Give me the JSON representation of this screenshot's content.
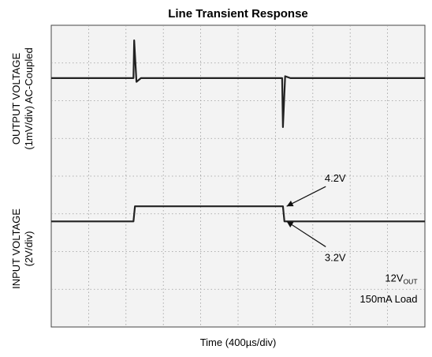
{
  "chart_data": {
    "type": "line",
    "title": "Line Transient Response",
    "xlabel": "Time (400µs/div)",
    "ylabel_top": "OUTPUT VOLTAGE\n(1mV/div) AC-Coupled",
    "ylabel_bottom": "INPUT VOLTAGE\n(2V/div)",
    "grid": true,
    "x_divisions": 10,
    "y_divisions": 8,
    "xlim": [
      0,
      10
    ],
    "ylim": [
      0,
      8
    ],
    "series": [
      {
        "name": "",
        "x": [
          0,
          2.2,
          2.22,
          2.28,
          2.4,
          6.18,
          6.2,
          6.26,
          6.4,
          10
        ],
        "y": [
          6.6,
          6.6,
          7.6,
          6.5,
          6.6,
          6.6,
          5.3,
          6.65,
          6.6,
          6.6
        ]
      },
      {
        "name": "",
        "x": [
          0,
          2.2,
          2.24,
          6.2,
          6.24,
          10
        ],
        "y": [
          2.8,
          2.8,
          3.2,
          3.2,
          2.8,
          2.8
        ]
      }
    ],
    "annotations": [
      {
        "text": "4.2V",
        "x": 7.6,
        "y": 3.85,
        "arrow_to": [
          6.3,
          3.2
        ]
      },
      {
        "text": "3.2V",
        "x": 7.6,
        "y": 1.75,
        "arrow_to": [
          6.3,
          2.8
        ]
      },
      {
        "text": "12V",
        "sub": "OUT",
        "x": 9.8,
        "y": 1.2
      },
      {
        "text": "150mA Load",
        "x": 9.8,
        "y": 0.65
      }
    ]
  }
}
